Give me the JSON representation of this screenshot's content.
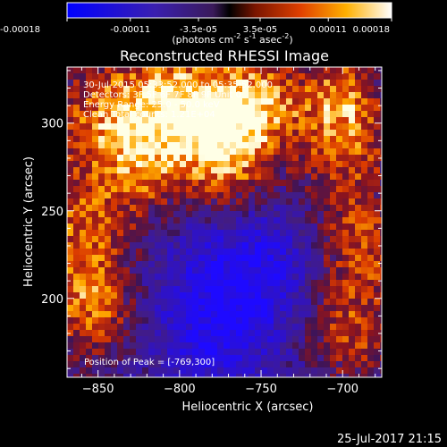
{
  "chart_data": {
    "type": "heatmap",
    "title": "Reconstructed RHESSI Image",
    "xlabel": "Heliocentric X (arcsec)",
    "ylabel": "Heliocentric Y (arcsec)",
    "xlim": [
      -869,
      -676
    ],
    "ylim": [
      155,
      332
    ],
    "xticks": [
      -850,
      -800,
      -750,
      -700
    ],
    "yticks": [
      200,
      250,
      300
    ],
    "colorbar": {
      "ticks": [
        "-0.00018",
        "-0.00011",
        "-3.5e-05",
        "3.5e-05",
        "0.00011",
        "0.00018"
      ],
      "units_prefix": "(photons cm",
      "units_exp1": "-2",
      "units_mid": " s",
      "units_exp2": "-1",
      "units_mid2": " asec",
      "units_exp3": "-2",
      "units_suffix": ")",
      "range": [
        -0.00018,
        0.00018
      ]
    },
    "annotations": [
      "30-Jul-2015 05:33:52.000 to 05:35:52.000",
      "Detectors: 3F 5F 6F 7F 8F 9F Unit 0",
      "Energy Range: 25.0 - 50.0 keV",
      "Clean    Total counts: 1.21E+04"
    ],
    "peak_label": "Position of Peak = [-769,300]",
    "peak": {
      "x": -769,
      "y": 300
    },
    "grid": false
  },
  "footer": {
    "timestamp": "25-Jul-2017 21:15"
  }
}
